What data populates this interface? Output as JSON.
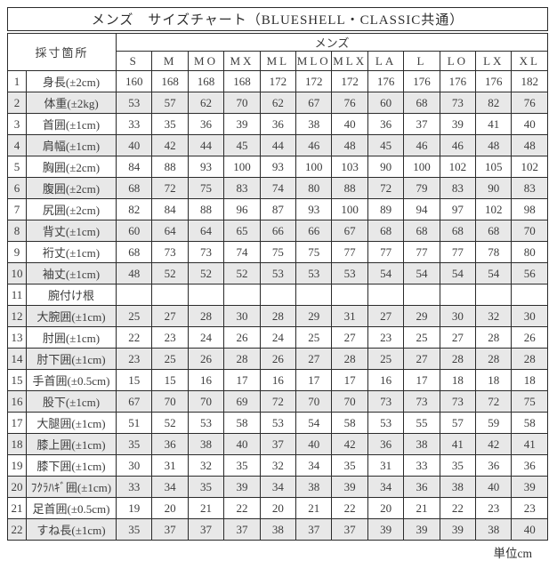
{
  "title": "メンズ　サイズチャート（BLUESHELL・CLASSIC共通）",
  "header": {
    "location_label": "採寸箇所",
    "group_label": "メンズ",
    "sizes": [
      "S",
      "M",
      "MO",
      "MX",
      "ML",
      "MLO",
      "MLX",
      "LA",
      "L",
      "LO",
      "LX",
      "XL"
    ]
  },
  "rows": [
    {
      "no": 1,
      "label": "身長(±2cm)",
      "values": [
        "160",
        "168",
        "168",
        "168",
        "172",
        "172",
        "172",
        "176",
        "176",
        "176",
        "176",
        "182"
      ]
    },
    {
      "no": 2,
      "label": "体重(±2kg)",
      "values": [
        "53",
        "57",
        "62",
        "70",
        "62",
        "67",
        "76",
        "60",
        "68",
        "73",
        "82",
        "76"
      ]
    },
    {
      "no": 3,
      "label": "首囲(±1cm)",
      "values": [
        "33",
        "35",
        "36",
        "39",
        "36",
        "38",
        "40",
        "36",
        "37",
        "39",
        "41",
        "40"
      ]
    },
    {
      "no": 4,
      "label": "肩幅(±1cm)",
      "values": [
        "40",
        "42",
        "44",
        "45",
        "44",
        "46",
        "48",
        "45",
        "46",
        "46",
        "48",
        "48"
      ]
    },
    {
      "no": 5,
      "label": "胸囲(±2cm)",
      "values": [
        "84",
        "88",
        "93",
        "100",
        "93",
        "100",
        "103",
        "90",
        "100",
        "102",
        "105",
        "102"
      ]
    },
    {
      "no": 6,
      "label": "腹囲(±2cm)",
      "values": [
        "68",
        "72",
        "75",
        "83",
        "74",
        "80",
        "88",
        "72",
        "79",
        "83",
        "90",
        "83"
      ]
    },
    {
      "no": 7,
      "label": "尻囲(±2cm)",
      "values": [
        "82",
        "84",
        "88",
        "96",
        "87",
        "93",
        "100",
        "89",
        "94",
        "97",
        "102",
        "98"
      ]
    },
    {
      "no": 8,
      "label": "背丈(±1cm)",
      "values": [
        "60",
        "64",
        "64",
        "65",
        "66",
        "66",
        "67",
        "68",
        "68",
        "68",
        "68",
        "70"
      ]
    },
    {
      "no": 9,
      "label": "裄丈(±1cm)",
      "values": [
        "68",
        "73",
        "73",
        "74",
        "75",
        "75",
        "77",
        "77",
        "77",
        "77",
        "78",
        "80"
      ]
    },
    {
      "no": 10,
      "label": "袖丈(±1cm)",
      "values": [
        "48",
        "52",
        "52",
        "52",
        "53",
        "53",
        "53",
        "54",
        "54",
        "54",
        "54",
        "56"
      ]
    },
    {
      "no": 11,
      "label": "腕付け根",
      "values": [
        "",
        "",
        "",
        "",
        "",
        "",
        "",
        "",
        "",
        "",
        "",
        ""
      ]
    },
    {
      "no": 12,
      "label": "大腕囲(±1cm)",
      "values": [
        "25",
        "27",
        "28",
        "30",
        "28",
        "29",
        "31",
        "27",
        "29",
        "30",
        "32",
        "30"
      ]
    },
    {
      "no": 13,
      "label": "肘囲(±1cm)",
      "values": [
        "22",
        "23",
        "24",
        "26",
        "24",
        "25",
        "27",
        "23",
        "25",
        "27",
        "28",
        "26"
      ]
    },
    {
      "no": 14,
      "label": "肘下囲(±1cm)",
      "values": [
        "23",
        "25",
        "26",
        "28",
        "26",
        "27",
        "28",
        "25",
        "27",
        "28",
        "28",
        "28"
      ]
    },
    {
      "no": 15,
      "label": "手首囲(±0.5cm)",
      "values": [
        "15",
        "15",
        "16",
        "17",
        "16",
        "17",
        "17",
        "16",
        "17",
        "18",
        "18",
        "18"
      ]
    },
    {
      "no": 16,
      "label": "股下(±1cm)",
      "values": [
        "67",
        "70",
        "70",
        "69",
        "72",
        "70",
        "70",
        "73",
        "73",
        "73",
        "72",
        "75"
      ]
    },
    {
      "no": 17,
      "label": "大腿囲(±1cm)",
      "values": [
        "51",
        "52",
        "53",
        "58",
        "53",
        "54",
        "58",
        "53",
        "55",
        "57",
        "59",
        "58"
      ]
    },
    {
      "no": 18,
      "label": "膝上囲(±1cm)",
      "values": [
        "35",
        "36",
        "38",
        "40",
        "37",
        "40",
        "42",
        "36",
        "38",
        "41",
        "42",
        "41"
      ]
    },
    {
      "no": 19,
      "label": "膝下囲(±1cm)",
      "values": [
        "30",
        "31",
        "32",
        "35",
        "32",
        "34",
        "35",
        "31",
        "33",
        "35",
        "36",
        "36"
      ]
    },
    {
      "no": 20,
      "label": "ﾌｸﾗﾊｷﾞ囲(±1cm)",
      "values": [
        "33",
        "34",
        "35",
        "39",
        "34",
        "38",
        "39",
        "34",
        "36",
        "38",
        "40",
        "39"
      ]
    },
    {
      "no": 21,
      "label": "足首囲(±0.5cm)",
      "values": [
        "19",
        "20",
        "21",
        "22",
        "20",
        "21",
        "22",
        "20",
        "21",
        "22",
        "23",
        "23"
      ]
    },
    {
      "no": 22,
      "label": "すね長(±1cm)",
      "values": [
        "35",
        "37",
        "37",
        "37",
        "38",
        "37",
        "37",
        "39",
        "39",
        "39",
        "38",
        "40"
      ]
    }
  ],
  "footer": {
    "unit_label": "単位cm"
  }
}
